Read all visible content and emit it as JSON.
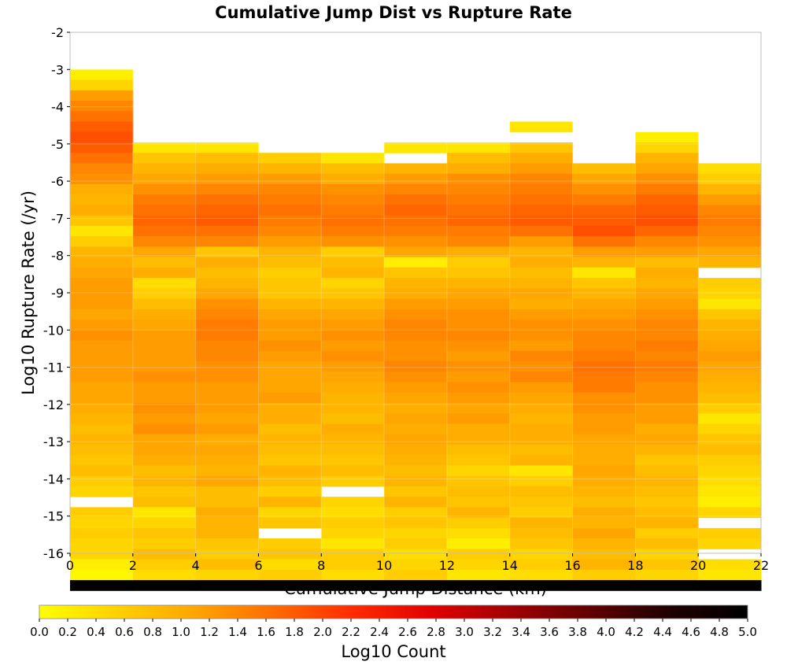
{
  "chart_data": {
    "type": "heatmap",
    "title": "Cumulative Jump Dist vs Rupture Rate",
    "xlabel": "Cumulative Jump Distance (km)",
    "ylabel": "Log10 Rupture Rate (/yr)",
    "colorbar_label": "Log10 Count",
    "xlim": [
      0,
      22
    ],
    "ylim": [
      -16,
      -2
    ],
    "x_ticks": [
      "0",
      "2",
      "4",
      "6",
      "8",
      "10",
      "12",
      "14",
      "16",
      "18",
      "20",
      "22"
    ],
    "y_ticks": [
      "-2",
      "-3",
      "-4",
      "-5",
      "-6",
      "-7",
      "-8",
      "-9",
      "-10",
      "-11",
      "-12",
      "-13",
      "-14",
      "-15",
      "-16"
    ],
    "colorbar_ticks": [
      "0.0",
      "0.2",
      "0.4",
      "0.6",
      "0.8",
      "1.0",
      "1.2",
      "1.4",
      "1.6",
      "1.8",
      "2.0",
      "2.2",
      "2.4",
      "2.6",
      "2.8",
      "3.0",
      "3.2",
      "3.4",
      "3.6",
      "3.8",
      "4.0",
      "4.2",
      "4.4",
      "4.6",
      "4.8",
      "5.0"
    ],
    "colorbar_range": [
      0,
      5
    ],
    "colormap": [
      "#ffff00",
      "#ffd000",
      "#ffa500",
      "#ff6a00",
      "#ff2a00",
      "#e00000",
      "#a00000",
      "#600000",
      "#200000",
      "#000000"
    ],
    "x_bin_width_km": 2,
    "y_bin_height_log10": 0.28,
    "y_bin_top": -3,
    "x_bin_starts_km": [
      0,
      2,
      4,
      6,
      8,
      10,
      12,
      14,
      16,
      18,
      20
    ],
    "columns": [
      [
        0.2,
        0.5,
        1.2,
        1.4,
        1.6,
        1.8,
        1.9,
        1.8,
        1.6,
        1.4,
        1.3,
        1.0,
        0.9,
        1.0,
        0.7,
        0.3,
        0.6,
        0.9,
        1.0,
        1.1,
        1.2,
        1.2,
        1.2,
        1.1,
        1.2,
        1.3,
        1.2,
        1.2,
        1.2,
        1.2,
        1.1,
        1.1,
        1.0,
        0.9,
        0.8,
        0.9,
        0.8,
        0.7,
        0.8,
        0.6,
        0.5,
        null,
        0.6,
        0.5,
        0.6,
        0.5,
        0.5,
        0.2,
        0.1,
        5.0
      ],
      [
        null,
        null,
        null,
        null,
        null,
        null,
        null,
        0.3,
        0.7,
        0.9,
        1.1,
        1.3,
        1.5,
        1.6,
        1.7,
        1.6,
        1.4,
        1.1,
        0.8,
        1.0,
        0.4,
        0.6,
        0.8,
        1.0,
        1.1,
        1.2,
        1.2,
        1.2,
        1.2,
        1.3,
        1.2,
        1.2,
        1.3,
        1.2,
        1.3,
        1.1,
        1.1,
        1.0,
        0.8,
        0.9,
        0.7,
        0.8,
        0.3,
        0.5,
        0.7,
        0.6,
        0.8,
        0.6,
        0.4,
        5.0
      ],
      [
        null,
        null,
        null,
        null,
        null,
        null,
        null,
        0.3,
        0.8,
        1.0,
        1.2,
        1.4,
        1.6,
        1.7,
        1.8,
        1.6,
        1.4,
        0.7,
        1.0,
        0.8,
        0.9,
        1.1,
        1.3,
        1.4,
        1.5,
        1.5,
        1.4,
        1.4,
        1.3,
        1.3,
        1.2,
        1.2,
        1.2,
        1.1,
        1.2,
        1.0,
        1.1,
        1.0,
        0.9,
        1.1,
        0.8,
        0.8,
        1.0,
        0.9,
        0.9,
        0.7,
        0.6,
        0.8,
        0.5,
        5.0
      ],
      [
        null,
        null,
        null,
        null,
        null,
        null,
        null,
        null,
        0.6,
        0.9,
        1.2,
        1.4,
        1.5,
        1.6,
        1.5,
        1.4,
        1.2,
        0.9,
        0.8,
        0.6,
        0.7,
        0.7,
        0.9,
        1.1,
        1.2,
        1.2,
        1.3,
        1.2,
        1.1,
        1.1,
        1.1,
        1.2,
        1.0,
        1.0,
        0.8,
        0.9,
        0.8,
        0.7,
        0.9,
        0.8,
        0.6,
        0.9,
        0.5,
        0.7,
        null,
        0.6,
        0.7,
        0.4,
        0.6,
        5.0
      ],
      [
        null,
        null,
        null,
        null,
        null,
        null,
        null,
        null,
        0.3,
        0.8,
        1.0,
        1.3,
        1.4,
        1.5,
        1.6,
        1.5,
        1.3,
        0.6,
        0.8,
        0.9,
        0.5,
        0.7,
        0.9,
        1.1,
        1.2,
        1.3,
        1.2,
        1.3,
        1.2,
        1.1,
        1.0,
        0.9,
        0.9,
        0.8,
        1.0,
        0.9,
        0.8,
        0.7,
        0.8,
        0.6,
        null,
        0.5,
        0.4,
        0.6,
        0.5,
        0.3,
        0.6,
        0.6,
        0.4,
        5.0
      ],
      [
        null,
        null,
        null,
        null,
        null,
        null,
        null,
        0.3,
        null,
        0.9,
        1.2,
        1.4,
        1.6,
        1.7,
        1.6,
        1.5,
        1.3,
        1.1,
        0.2,
        0.7,
        0.9,
        1.0,
        1.2,
        1.3,
        1.4,
        1.4,
        1.3,
        1.3,
        1.4,
        1.3,
        1.2,
        1.1,
        1.0,
        1.1,
        1.0,
        1.1,
        1.0,
        0.9,
        0.8,
        0.9,
        0.7,
        0.9,
        0.6,
        0.7,
        0.5,
        0.6,
        0.4,
        0.5,
        0.6,
        5.0
      ],
      [
        null,
        null,
        null,
        null,
        null,
        null,
        null,
        0.3,
        0.8,
        1.0,
        1.3,
        1.4,
        1.5,
        1.6,
        1.7,
        1.5,
        1.4,
        1.0,
        0.6,
        0.7,
        0.9,
        1.1,
        1.2,
        1.3,
        1.3,
        1.4,
        1.3,
        1.2,
        1.3,
        1.2,
        1.3,
        1.2,
        1.1,
        1.2,
        1.0,
        1.0,
        0.8,
        0.7,
        0.5,
        0.7,
        0.8,
        0.7,
        0.9,
        0.6,
        0.4,
        0.2,
        0.6,
        0.5,
        0.3,
        5.0
      ],
      [
        null,
        null,
        null,
        null,
        null,
        0.3,
        null,
        0.7,
        1.0,
        1.2,
        1.4,
        1.5,
        1.6,
        1.7,
        1.8,
        1.6,
        1.2,
        0.9,
        1.0,
        0.8,
        0.9,
        1.1,
        1.0,
        1.2,
        1.3,
        1.3,
        1.2,
        1.4,
        1.3,
        1.4,
        1.2,
        1.1,
        1.0,
        0.9,
        1.0,
        1.0,
        0.8,
        0.9,
        0.3,
        0.6,
        0.8,
        0.7,
        0.6,
        0.9,
        0.8,
        0.7,
        0.5,
        0.6,
        0.4,
        5.0
      ],
      [
        null,
        null,
        null,
        null,
        null,
        null,
        null,
        null,
        null,
        0.8,
        1.1,
        1.3,
        1.5,
        1.7,
        1.8,
        1.9,
        1.6,
        1.2,
        0.9,
        0.3,
        0.7,
        0.9,
        1.1,
        1.2,
        1.3,
        1.4,
        1.4,
        1.5,
        1.6,
        1.5,
        1.5,
        1.3,
        1.3,
        1.2,
        1.2,
        1.1,
        1.0,
        1.0,
        1.1,
        1.0,
        0.9,
        0.8,
        1.0,
        0.9,
        1.1,
        0.9,
        0.8,
        0.9,
        0.6,
        5.0
      ],
      [
        null,
        null,
        null,
        null,
        null,
        null,
        0.2,
        0.5,
        0.9,
        1.1,
        1.3,
        1.5,
        1.7,
        1.8,
        1.9,
        1.7,
        1.4,
        1.2,
        0.8,
        1.0,
        0.9,
        1.1,
        1.2,
        1.3,
        1.4,
        1.4,
        1.5,
        1.4,
        1.5,
        1.4,
        1.3,
        1.3,
        1.2,
        1.2,
        1.0,
        1.1,
        0.9,
        0.7,
        0.8,
        0.9,
        0.8,
        0.7,
        0.8,
        0.9,
        0.6,
        0.8,
        0.5,
        0.7,
        0.5,
        5.0
      ],
      [
        null,
        null,
        null,
        null,
        null,
        null,
        null,
        null,
        null,
        0.4,
        0.6,
        0.9,
        1.2,
        1.4,
        1.5,
        1.4,
        1.3,
        1.1,
        0.9,
        null,
        0.6,
        0.5,
        0.3,
        0.7,
        0.9,
        1.0,
        1.1,
        1.2,
        1.1,
        1.0,
        0.9,
        0.8,
        0.6,
        0.3,
        0.5,
        0.7,
        0.8,
        0.6,
        0.5,
        0.4,
        0.3,
        0.2,
        0.5,
        null,
        0.6,
        0.5,
        null,
        0.4,
        0.3,
        5.0
      ]
    ]
  }
}
